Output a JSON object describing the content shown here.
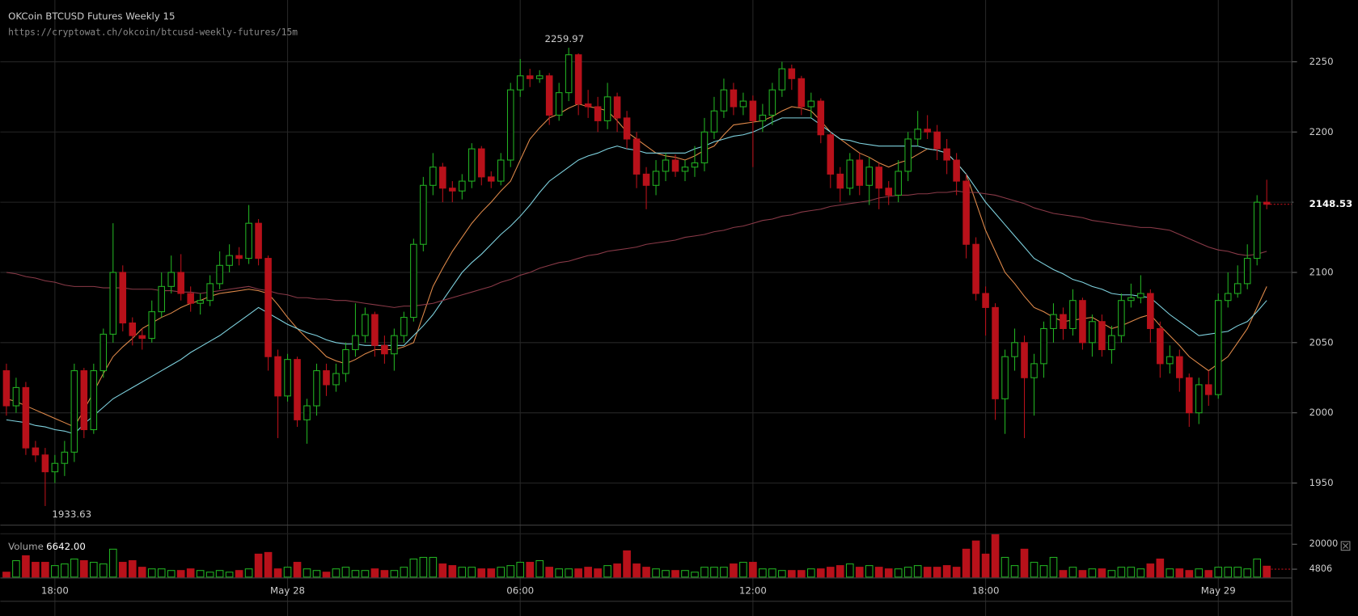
{
  "chart_data": {
    "type": "candlestick",
    "title": "OKCoin BTCUSD Futures Weekly 15",
    "subtitle": "https://cryptowat.ch/okcoin/btcusd-weekly-futures/15m",
    "categories": [
      null,
      null,
      null,
      null,
      null,
      "18:00",
      null,
      null,
      null,
      null,
      null,
      null,
      null,
      null,
      null,
      null,
      null,
      null,
      null,
      null,
      null,
      null,
      null,
      null,
      null,
      null,
      null,
      null,
      null,
      "May 28",
      null,
      null,
      null,
      null,
      null,
      null,
      null,
      null,
      null,
      null,
      null,
      null,
      null,
      null,
      null,
      null,
      null,
      null,
      null,
      null,
      null,
      null,
      null,
      "06:00",
      null,
      null,
      null,
      null,
      null,
      null,
      null,
      null,
      null,
      null,
      null,
      null,
      null,
      null,
      null,
      null,
      null,
      null,
      null,
      null,
      null,
      null,
      null,
      "12:00",
      null,
      null,
      null,
      null,
      null,
      null,
      null,
      null,
      null,
      null,
      null,
      null,
      null,
      null,
      null,
      null,
      null,
      null,
      null,
      null,
      null,
      null,
      null,
      "18:00",
      null,
      null,
      null,
      null,
      null,
      null,
      null,
      null,
      null,
      null,
      null,
      null,
      null,
      null,
      null,
      null,
      null,
      null,
      null,
      null,
      null,
      null,
      null,
      "May 29",
      null,
      null,
      null,
      null,
      null
    ],
    "open": [
      2030,
      2005,
      2018,
      1975,
      1970,
      1958,
      1964,
      1972,
      2030,
      1988,
      2030,
      2056,
      2100,
      2064,
      2055,
      2053,
      2072,
      2090,
      2100,
      2085,
      2078,
      2080,
      2092,
      2105,
      2112,
      2110,
      2135,
      2110,
      2040,
      2012,
      2038,
      1995,
      2005,
      2030,
      2020,
      2028,
      2045,
      2055,
      2070,
      2048,
      2042,
      2055,
      2068,
      2120,
      2162,
      2175,
      2160,
      2158,
      2165,
      2188,
      2168,
      2165,
      2180,
      2230,
      2240,
      2238,
      2240,
      2212,
      2228,
      2255,
      2220,
      2218,
      2208,
      2225,
      2210,
      2195,
      2170,
      2162,
      2172,
      2180,
      2172,
      2175,
      2178,
      2200,
      2215,
      2230,
      2218,
      2222,
      2208,
      2212,
      2230,
      2245,
      2238,
      2218,
      2222,
      2198,
      2170,
      2160,
      2180,
      2162,
      2175,
      2160,
      2155,
      2172,
      2195,
      2202,
      2200,
      2188,
      2180,
      2165,
      2120,
      2085,
      2075,
      2010,
      2040,
      2050,
      2025,
      2035,
      2060,
      2070,
      2060,
      2080,
      2050,
      2065,
      2045,
      2055,
      2080,
      2082,
      2085,
      2060,
      2035,
      2040,
      2025,
      2000,
      2020,
      2013,
      2080,
      2085,
      2092,
      2110,
      2150
    ],
    "high": [
      2035,
      2025,
      2022,
      1980,
      1975,
      1970,
      1980,
      2035,
      2032,
      2035,
      2060,
      2135,
      2105,
      2068,
      2060,
      2080,
      2100,
      2112,
      2113,
      2090,
      2085,
      2098,
      2115,
      2120,
      2118,
      2148,
      2138,
      2112,
      2045,
      2042,
      2040,
      2010,
      2035,
      2035,
      2035,
      2050,
      2078,
      2075,
      2072,
      2055,
      2060,
      2072,
      2124,
      2168,
      2185,
      2178,
      2165,
      2170,
      2192,
      2190,
      2172,
      2185,
      2235,
      2252,
      2245,
      2244,
      2242,
      2235,
      2259.97,
      2256,
      2230,
      2225,
      2235,
      2228,
      2215,
      2200,
      2175,
      2180,
      2185,
      2184,
      2180,
      2190,
      2210,
      2225,
      2238,
      2235,
      2228,
      2226,
      2220,
      2235,
      2250,
      2248,
      2240,
      2228,
      2224,
      2200,
      2175,
      2185,
      2185,
      2182,
      2178,
      2165,
      2180,
      2200,
      2215,
      2212,
      2205,
      2195,
      2185,
      2170,
      2125,
      2090,
      2078,
      2045,
      2060,
      2055,
      2042,
      2065,
      2078,
      2075,
      2088,
      2082,
      2070,
      2070,
      2062,
      2085,
      2092,
      2098,
      2088,
      2065,
      2048,
      2045,
      2028,
      2025,
      2030,
      2085,
      2100,
      2105,
      2120,
      2155,
      2166
    ],
    "low": [
      1998,
      2000,
      1970,
      1965,
      1933.63,
      1950,
      1955,
      1965,
      1982,
      1985,
      2025,
      2050,
      2058,
      2048,
      2045,
      2050,
      2068,
      2085,
      2080,
      2072,
      2070,
      2076,
      2088,
      2100,
      2105,
      2106,
      2105,
      2030,
      1982,
      2008,
      1990,
      1978,
      1998,
      2012,
      2015,
      2022,
      2040,
      2050,
      2040,
      2035,
      2030,
      2050,
      2065,
      2115,
      2155,
      2150,
      2150,
      2152,
      2160,
      2162,
      2160,
      2162,
      2175,
      2225,
      2232,
      2235,
      2205,
      2208,
      2222,
      2212,
      2210,
      2200,
      2202,
      2200,
      2188,
      2160,
      2145,
      2155,
      2165,
      2168,
      2165,
      2168,
      2172,
      2195,
      2210,
      2212,
      2212,
      2175,
      2200,
      2205,
      2225,
      2230,
      2212,
      2210,
      2192,
      2160,
      2150,
      2155,
      2155,
      2148,
      2145,
      2148,
      2150,
      2165,
      2190,
      2195,
      2180,
      2170,
      2155,
      2110,
      2080,
      2055,
      1995,
      1985,
      2030,
      1982,
      1998,
      2025,
      2050,
      2052,
      2055,
      2045,
      2040,
      2040,
      2035,
      2050,
      2075,
      2078,
      2050,
      2025,
      2028,
      2015,
      1990,
      1992,
      2005,
      2010,
      2075,
      2082,
      2088,
      2105,
      2145
    ],
    "close": [
      2005,
      2018,
      1975,
      1970,
      1958,
      1964,
      1972,
      2030,
      1988,
      2030,
      2056,
      2100,
      2064,
      2055,
      2053,
      2072,
      2090,
      2100,
      2085,
      2078,
      2080,
      2092,
      2105,
      2112,
      2110,
      2135,
      2110,
      2040,
      2012,
      2038,
      1995,
      2005,
      2030,
      2020,
      2028,
      2045,
      2055,
      2070,
      2048,
      2042,
      2055,
      2068,
      2120,
      2162,
      2175,
      2160,
      2158,
      2165,
      2188,
      2168,
      2165,
      2180,
      2230,
      2240,
      2238,
      2240,
      2212,
      2228,
      2255,
      2220,
      2218,
      2208,
      2225,
      2210,
      2195,
      2170,
      2162,
      2172,
      2180,
      2172,
      2175,
      2178,
      2200,
      2215,
      2230,
      2218,
      2222,
      2208,
      2212,
      2230,
      2245,
      2238,
      2218,
      2222,
      2198,
      2170,
      2160,
      2180,
      2162,
      2175,
      2160,
      2155,
      2172,
      2195,
      2202,
      2200,
      2188,
      2180,
      2165,
      2120,
      2085,
      2075,
      2010,
      2040,
      2050,
      2025,
      2035,
      2060,
      2070,
      2060,
      2080,
      2050,
      2065,
      2045,
      2055,
      2080,
      2082,
      2085,
      2060,
      2035,
      2040,
      2025,
      2000,
      2020,
      2013,
      2080,
      2085,
      2092,
      2110,
      2150,
      2148.53
    ],
    "up_color": "#22b022",
    "down_color": "#b8111a",
    "ylim": [
      1920,
      2294
    ],
    "yticks": [
      1950,
      2000,
      2050,
      2100,
      2150,
      2200,
      2250
    ],
    "grid": true,
    "indicators": [
      {
        "color": "#e08a4a",
        "values": [
          2010,
          2008,
          2005,
          2002,
          1999,
          1996,
          1993,
          1990,
          2002,
          2015,
          2028,
          2040,
          2047,
          2053,
          2060,
          2064,
          2068,
          2071,
          2075,
          2078,
          2080,
          2083,
          2085,
          2086,
          2087,
          2088,
          2087,
          2085,
          2077,
          2068,
          2060,
          2053,
          2047,
          2040,
          2037,
          2035,
          2038,
          2042,
          2045,
          2045,
          2045,
          2047,
          2050,
          2070,
          2090,
          2103,
          2115,
          2125,
          2135,
          2143,
          2150,
          2158,
          2165,
          2180,
          2195,
          2203,
          2210,
          2213,
          2217,
          2220,
          2218,
          2217,
          2215,
          2208,
          2200,
          2195,
          2190,
          2185,
          2183,
          2182,
          2180,
          2183,
          2187,
          2190,
          2198,
          2205,
          2206,
          2207,
          2208,
          2211,
          2215,
          2218,
          2217,
          2215,
          2208,
          2200,
          2195,
          2190,
          2185,
          2182,
          2178,
          2175,
          2178,
          2180,
          2184,
          2188,
          2187,
          2185,
          2178,
          2170,
          2150,
          2130,
          2115,
          2100,
          2092,
          2083,
          2075,
          2072,
          2068,
          2065,
          2066,
          2067,
          2068,
          2064,
          2060,
          2062,
          2065,
          2068,
          2070,
          2062,
          2055,
          2048,
          2040,
          2035,
          2030,
          2035,
          2040,
          2050,
          2060,
          2075,
          2090
        ]
      },
      {
        "color": "#7fd3e0",
        "values": [
          1995,
          1994,
          1993,
          1991,
          1990,
          1988,
          1987,
          1985,
          1992,
          1998,
          2004,
          2010,
          2014,
          2018,
          2022,
          2026,
          2030,
          2034,
          2038,
          2043,
          2047,
          2051,
          2055,
          2060,
          2065,
          2070,
          2075,
          2071,
          2067,
          2063,
          2060,
          2057,
          2055,
          2052,
          2050,
          2049,
          2049,
          2048,
          2048,
          2048,
          2048,
          2048,
          2055,
          2062,
          2070,
          2080,
          2090,
          2100,
          2107,
          2113,
          2120,
          2127,
          2133,
          2140,
          2148,
          2157,
          2165,
          2170,
          2175,
          2180,
          2183,
          2185,
          2188,
          2190,
          2188,
          2187,
          2185,
          2185,
          2185,
          2185,
          2185,
          2188,
          2190,
          2193,
          2195,
          2197,
          2198,
          2200,
          2203,
          2207,
          2210,
          2210,
          2210,
          2210,
          2205,
          2200,
          2195,
          2194,
          2192,
          2191,
          2190,
          2190,
          2190,
          2190,
          2190,
          2188,
          2187,
          2185,
          2178,
          2170,
          2160,
          2150,
          2142,
          2134,
          2126,
          2118,
          2110,
          2106,
          2102,
          2099,
          2095,
          2093,
          2090,
          2088,
          2085,
          2084,
          2084,
          2083,
          2082,
          2076,
          2070,
          2065,
          2060,
          2055,
          2056,
          2057,
          2058,
          2062,
          2065,
          2072,
          2080
        ]
      },
      {
        "color": "#8a3a48",
        "values": [
          2100,
          2099,
          2097,
          2096,
          2094,
          2093,
          2091,
          2090,
          2090,
          2090,
          2089,
          2089,
          2089,
          2088,
          2088,
          2088,
          2087,
          2087,
          2086,
          2086,
          2085,
          2086,
          2087,
          2088,
          2089,
          2090,
          2088,
          2087,
          2085,
          2084,
          2082,
          2082,
          2081,
          2081,
          2080,
          2080,
          2079,
          2078,
          2077,
          2076,
          2075,
          2076,
          2076,
          2077,
          2078,
          2080,
          2082,
          2084,
          2086,
          2088,
          2090,
          2093,
          2095,
          2098,
          2100,
          2103,
          2105,
          2107,
          2108,
          2110,
          2112,
          2113,
          2115,
          2116,
          2117,
          2118,
          2120,
          2121,
          2122,
          2123,
          2125,
          2126,
          2127,
          2129,
          2130,
          2132,
          2133,
          2135,
          2137,
          2138,
          2140,
          2141,
          2143,
          2144,
          2145,
          2147,
          2148,
          2149,
          2150,
          2151,
          2153,
          2154,
          2155,
          2155,
          2156,
          2156,
          2157,
          2157,
          2158,
          2157,
          2157,
          2156,
          2155,
          2153,
          2151,
          2149,
          2146,
          2144,
          2142,
          2141,
          2140,
          2139,
          2137,
          2136,
          2135,
          2134,
          2133,
          2132,
          2132,
          2131,
          2130,
          2127,
          2124,
          2121,
          2118,
          2116,
          2115,
          2113,
          2112,
          2113,
          2115
        ]
      }
    ],
    "volume": {
      "title": "Volume",
      "values": [
        3000,
        10000,
        13000,
        9000,
        9000,
        7000,
        8000,
        11000,
        10000,
        9000,
        8000,
        17000,
        9000,
        10000,
        6000,
        5000,
        5000,
        4000,
        4000,
        5000,
        4000,
        3000,
        4000,
        3000,
        4000,
        5000,
        14000,
        15000,
        5000,
        6000,
        9000,
        5000,
        4000,
        3000,
        5000,
        6000,
        4000,
        4000,
        5000,
        4000,
        4000,
        6000,
        11000,
        12000,
        12000,
        8000,
        7000,
        6000,
        6000,
        5000,
        5000,
        6000,
        7000,
        9000,
        9000,
        10000,
        6000,
        5000,
        5000,
        5000,
        6000,
        5000,
        7000,
        8000,
        16000,
        8000,
        6000,
        5000,
        4000,
        4000,
        4000,
        3000,
        6000,
        6000,
        6000,
        8000,
        9000,
        9000,
        5000,
        5000,
        4000,
        4000,
        4000,
        5000,
        5000,
        6000,
        7000,
        8000,
        6000,
        7000,
        6000,
        5000,
        5000,
        6000,
        7000,
        6000,
        6000,
        7000,
        6000,
        17000,
        22000,
        14000,
        26000,
        12000,
        7000,
        17000,
        9000,
        7000,
        12000,
        4000,
        6000,
        4000,
        5000,
        5000,
        4000,
        6000,
        6000,
        5000,
        8000,
        11000,
        5000,
        5000,
        4000,
        5000,
        4000,
        6000,
        6000,
        6000,
        5000,
        11000,
        6642
      ],
      "value_labels": [
        null,
        null,
        null,
        null,
        null,
        null,
        null,
        null,
        null,
        null,
        null,
        null,
        null,
        null,
        null,
        null,
        null,
        null,
        null,
        null,
        null,
        null,
        null,
        null,
        null,
        null,
        null,
        null,
        null,
        null,
        null,
        null,
        null,
        null,
        null,
        null,
        null,
        null,
        null,
        null,
        null,
        null,
        null,
        null,
        null,
        null,
        null,
        null,
        null,
        null,
        null,
        null,
        null,
        null,
        null,
        null,
        null,
        null,
        null,
        null,
        null,
        null,
        null,
        null,
        null,
        null,
        null,
        null,
        null,
        null,
        null,
        null,
        null,
        null,
        null,
        null,
        null,
        null,
        null,
        null,
        null,
        null,
        null,
        null,
        null,
        null,
        null,
        null,
        null,
        null,
        null,
        null,
        null,
        null,
        null,
        null,
        null,
        null,
        null,
        null,
        null,
        null,
        null,
        null,
        null,
        null,
        null,
        null,
        null,
        null,
        null,
        null,
        null,
        null,
        null,
        null,
        null,
        null,
        null,
        null,
        null,
        null,
        null,
        null,
        null,
        null,
        null,
        null,
        null,
        null,
        "6642.00"
      ],
      "ylim": [
        0,
        29000
      ],
      "yticks": [
        4806,
        20000
      ]
    }
  }
}
